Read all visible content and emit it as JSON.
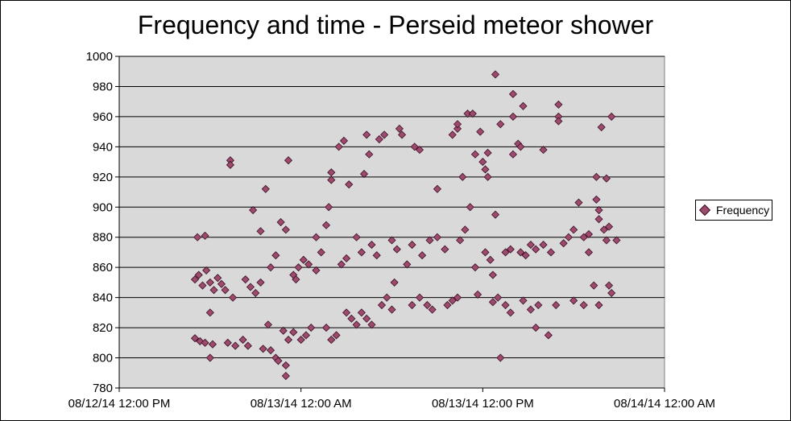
{
  "chart_data": {
    "type": "scatter",
    "title": "Frequency and time - Perseid meteor shower",
    "xlabel": "",
    "ylabel": "",
    "x_axis_type": "datetime",
    "xlim": [
      "08/12/14 12:00 PM",
      "08/14/14 12:00 AM"
    ],
    "ylim": [
      780,
      1000
    ],
    "x_tick_labels": [
      "08/12/14 12:00 PM",
      "08/13/14 12:00 AM",
      "08/13/14 12:00 PM",
      "08/14/14 12:00 AM"
    ],
    "y_ticks": [
      780,
      800,
      820,
      840,
      860,
      880,
      900,
      920,
      940,
      960,
      980,
      1000
    ],
    "grid": "horizontal",
    "legend_position": "right",
    "background_color": "#d9d9d9",
    "marker_color": "#9e4a6e",
    "marker_edge_color": "#3a0f22",
    "series": [
      {
        "name": "Frequency",
        "marker": "diamond",
        "points": [
          [
            "08/12/14 5:00 PM",
            852
          ],
          [
            "08/12/14 5:15 PM",
            855
          ],
          [
            "08/12/14 5:30 PM",
            848
          ],
          [
            "08/12/14 5:45 PM",
            858
          ],
          [
            "08/12/14 6:00 PM",
            850
          ],
          [
            "08/12/14 6:15 PM",
            845
          ],
          [
            "08/12/14 6:30 PM",
            853
          ],
          [
            "08/12/14 6:45 PM",
            849
          ],
          [
            "08/12/14 5:00 PM",
            813
          ],
          [
            "08/12/14 5:20 PM",
            811
          ],
          [
            "08/12/14 5:40 PM",
            810
          ],
          [
            "08/12/14 6:10 PM",
            809
          ],
          [
            "08/12/14 5:10 PM",
            880
          ],
          [
            "08/12/14 5:40 PM",
            881
          ],
          [
            "08/12/14 6:00 PM",
            800
          ],
          [
            "08/12/14 6:00 PM",
            830
          ],
          [
            "08/12/14 7:20 PM",
            931
          ],
          [
            "08/12/14 7:20 PM",
            928
          ],
          [
            "08/12/14 7:00 PM",
            845
          ],
          [
            "08/12/14 7:30 PM",
            840
          ],
          [
            "08/12/14 7:10 PM",
            810
          ],
          [
            "08/12/14 7:40 PM",
            808
          ],
          [
            "08/12/14 8:10 PM",
            812
          ],
          [
            "08/12/14 8:30 PM",
            808
          ],
          [
            "08/12/14 8:20 PM",
            852
          ],
          [
            "08/12/14 8:40 PM",
            847
          ],
          [
            "08/12/14 9:00 PM",
            843
          ],
          [
            "08/12/14 9:20 PM",
            850
          ],
          [
            "08/12/14 8:50 PM",
            898
          ],
          [
            "08/12/14 9:20 PM",
            884
          ],
          [
            "08/12/14 9:40 PM",
            912
          ],
          [
            "08/12/14 9:50 PM",
            822
          ],
          [
            "08/12/14 9:30 PM",
            806
          ],
          [
            "08/12/14 10:00 PM",
            805
          ],
          [
            "08/12/14 10:20 PM",
            800
          ],
          [
            "08/12/14 10:30 PM",
            798
          ],
          [
            "08/12/14 10:00 PM",
            860
          ],
          [
            "08/12/14 10:20 PM",
            868
          ],
          [
            "08/12/14 10:40 PM",
            890
          ],
          [
            "08/12/14 11:00 PM",
            885
          ],
          [
            "08/12/14 10:50 PM",
            818
          ],
          [
            "08/12/14 11:10 PM",
            812
          ],
          [
            "08/12/14 11:00 PM",
            795
          ],
          [
            "08/12/14 11:00 PM",
            788
          ],
          [
            "08/12/14 11:10 PM",
            931
          ],
          [
            "08/12/14 11:30 PM",
            855
          ],
          [
            "08/12/14 11:40 PM",
            852
          ],
          [
            "08/12/14 11:50 PM",
            860
          ],
          [
            "08/12/14 11:30 PM",
            817
          ],
          [
            "08/13/14 12:00 AM",
            812
          ],
          [
            "08/13/14 12:20 AM",
            815
          ],
          [
            "08/13/14 12:40 AM",
            820
          ],
          [
            "08/13/14 12:10 AM",
            865
          ],
          [
            "08/13/14 12:30 AM",
            862
          ],
          [
            "08/13/14 1:00 AM",
            858
          ],
          [
            "08/13/14 1:20 AM",
            870
          ],
          [
            "08/13/14 1:00 AM",
            880
          ],
          [
            "08/13/14 1:40 AM",
            888
          ],
          [
            "08/13/14 1:50 AM",
            900
          ],
          [
            "08/13/14 2:00 AM",
            923
          ],
          [
            "08/13/14 2:00 AM",
            918
          ],
          [
            "08/13/14 1:40 AM",
            820
          ],
          [
            "08/13/14 2:00 AM",
            812
          ],
          [
            "08/13/14 2:20 AM",
            815
          ],
          [
            "08/13/14 2:30 AM",
            940
          ],
          [
            "08/13/14 2:50 AM",
            944
          ],
          [
            "08/13/14 2:40 AM",
            862
          ],
          [
            "08/13/14 3:00 AM",
            866
          ],
          [
            "08/13/14 3:10 AM",
            915
          ],
          [
            "08/13/14 3:00 AM",
            830
          ],
          [
            "08/13/14 3:20 AM",
            826
          ],
          [
            "08/13/14 3:40 AM",
            822
          ],
          [
            "08/13/14 3:40 AM",
            880
          ],
          [
            "08/13/14 4:00 AM",
            870
          ],
          [
            "08/13/14 4:10 AM",
            922
          ],
          [
            "08/13/14 4:20 AM",
            948
          ],
          [
            "08/13/14 4:30 AM",
            935
          ],
          [
            "08/13/14 4:00 AM",
            830
          ],
          [
            "08/13/14 4:20 AM",
            826
          ],
          [
            "08/13/14 4:40 AM",
            822
          ],
          [
            "08/13/14 4:40 AM",
            875
          ],
          [
            "08/13/14 5:00 AM",
            868
          ],
          [
            "08/13/14 5:10 AM",
            945
          ],
          [
            "08/13/14 5:30 AM",
            948
          ],
          [
            "08/13/14 5:20 AM",
            835
          ],
          [
            "08/13/14 5:40 AM",
            840
          ],
          [
            "08/13/14 6:00 AM",
            832
          ],
          [
            "08/13/14 6:10 AM",
            850
          ],
          [
            "08/13/14 6:00 AM",
            878
          ],
          [
            "08/13/14 6:20 AM",
            872
          ],
          [
            "08/13/14 6:30 AM",
            952
          ],
          [
            "08/13/14 6:40 AM",
            948
          ],
          [
            "08/13/14 7:00 AM",
            862
          ],
          [
            "08/13/14 7:20 AM",
            875
          ],
          [
            "08/13/14 7:30 AM",
            940
          ],
          [
            "08/13/14 7:50 AM",
            938
          ],
          [
            "08/13/14 7:20 AM",
            835
          ],
          [
            "08/13/14 7:50 AM",
            840
          ],
          [
            "08/13/14 8:20 AM",
            835
          ],
          [
            "08/13/14 8:40 AM",
            832
          ],
          [
            "08/13/14 8:00 AM",
            868
          ],
          [
            "08/13/14 8:30 AM",
            878
          ],
          [
            "08/13/14 9:00 AM",
            880
          ],
          [
            "08/13/14 9:30 AM",
            872
          ],
          [
            "08/13/14 9:00 AM",
            912
          ],
          [
            "08/13/14 9:40 AM",
            835
          ],
          [
            "08/13/14 10:00 AM",
            838
          ],
          [
            "08/13/14 10:20 AM",
            840
          ],
          [
            "08/13/14 10:00 AM",
            948
          ],
          [
            "08/13/14 10:20 AM",
            952
          ],
          [
            "08/13/14 10:20 AM",
            955
          ],
          [
            "08/13/14 10:40 AM",
            920
          ],
          [
            "08/13/14 10:30 AM",
            878
          ],
          [
            "08/13/14 10:50 AM",
            885
          ],
          [
            "08/13/14 11:00 AM",
            962
          ],
          [
            "08/13/14 11:20 AM",
            962
          ],
          [
            "08/13/14 11:10 AM",
            900
          ],
          [
            "08/13/14 11:30 AM",
            935
          ],
          [
            "08/13/14 11:30 AM",
            860
          ],
          [
            "08/13/14 11:40 AM",
            842
          ],
          [
            "08/13/14 11:50 AM",
            950
          ],
          [
            "08/13/14 12:00 PM",
            930
          ],
          [
            "08/13/14 12:10 PM",
            925
          ],
          [
            "08/13/14 12:20 PM",
            920
          ],
          [
            "08/13/14 12:20 PM",
            936
          ],
          [
            "08/13/14 12:10 PM",
            870
          ],
          [
            "08/13/14 12:30 PM",
            865
          ],
          [
            "08/13/14 12:40 PM",
            855
          ],
          [
            "08/13/14 12:50 PM",
            988
          ],
          [
            "08/13/14 12:50 PM",
            895
          ],
          [
            "08/13/14 12:40 PM",
            837
          ],
          [
            "08/13/14 1:00 PM",
            840
          ],
          [
            "08/13/14 1:10 PM",
            955
          ],
          [
            "08/13/14 1:10 PM",
            800
          ],
          [
            "08/13/14 1:30 PM",
            870
          ],
          [
            "08/13/14 1:50 PM",
            872
          ],
          [
            "08/13/14 1:30 PM",
            835
          ],
          [
            "08/13/14 1:50 PM",
            830
          ],
          [
            "08/13/14 2:00 PM",
            960
          ],
          [
            "08/13/14 2:00 PM",
            975
          ],
          [
            "08/13/14 2:00 PM",
            935
          ],
          [
            "08/13/14 2:20 PM",
            942
          ],
          [
            "08/13/14 2:30 PM",
            940
          ],
          [
            "08/13/14 2:40 PM",
            967
          ],
          [
            "08/13/14 2:30 PM",
            870
          ],
          [
            "08/13/14 2:50 PM",
            868
          ],
          [
            "08/13/14 3:10 PM",
            875
          ],
          [
            "08/13/14 3:30 PM",
            872
          ],
          [
            "08/13/14 2:40 PM",
            838
          ],
          [
            "08/13/14 3:10 PM",
            832
          ],
          [
            "08/13/14 3:40 PM",
            835
          ],
          [
            "08/13/14 3:30 PM",
            820
          ],
          [
            "08/13/14 4:00 PM",
            938
          ],
          [
            "08/13/14 4:00 PM",
            875
          ],
          [
            "08/13/14 4:30 PM",
            870
          ],
          [
            "08/13/14 4:20 PM",
            815
          ],
          [
            "08/13/14 4:50 PM",
            835
          ],
          [
            "08/13/14 5:00 PM",
            960
          ],
          [
            "08/13/14 5:00 PM",
            957
          ],
          [
            "08/13/14 5:00 PM",
            968
          ],
          [
            "08/13/14 5:20 PM",
            876
          ],
          [
            "08/13/14 5:40 PM",
            880
          ],
          [
            "08/13/14 6:00 PM",
            885
          ],
          [
            "08/13/14 6:00 PM",
            838
          ],
          [
            "08/13/14 6:20 PM",
            903
          ],
          [
            "08/13/14 6:40 PM",
            880
          ],
          [
            "08/13/14 6:40 PM",
            835
          ],
          [
            "08/13/14 7:00 PM",
            870
          ],
          [
            "08/13/14 7:00 PM",
            882
          ],
          [
            "08/13/14 7:20 PM",
            848
          ],
          [
            "08/13/14 7:30 PM",
            905
          ],
          [
            "08/13/14 7:30 PM",
            920
          ],
          [
            "08/13/14 7:40 PM",
            898
          ],
          [
            "08/13/14 7:40 PM",
            892
          ],
          [
            "08/13/14 7:50 PM",
            953
          ],
          [
            "08/13/14 8:00 PM",
            885
          ],
          [
            "08/13/14 8:10 PM",
            919
          ],
          [
            "08/13/14 8:20 PM",
            887
          ],
          [
            "08/13/14 8:20 PM",
            848
          ],
          [
            "08/13/14 8:30 PM",
            843
          ],
          [
            "08/13/14 8:30 PM",
            960
          ],
          [
            "08/13/14 8:50 PM",
            878
          ],
          [
            "08/13/14 7:40 PM",
            835
          ],
          [
            "08/13/14 8:10 PM",
            878
          ]
        ]
      }
    ]
  }
}
